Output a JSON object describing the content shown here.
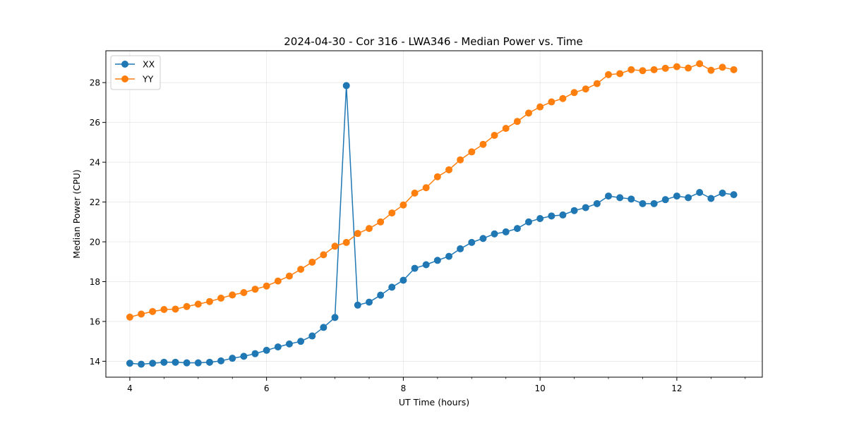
{
  "chart_data": {
    "type": "line",
    "title": "2024-04-30 - Cor 316 - LWA346 - Median Power vs. Time",
    "xlabel": "UT Time (hours)",
    "ylabel": "Median Power (CPU)",
    "xlim": [
      3.65,
      13.25
    ],
    "ylim": [
      13.2,
      29.6
    ],
    "xticks": [
      4,
      6,
      8,
      10,
      12
    ],
    "xtick_labels": [
      "4",
      "6",
      "8",
      "10",
      "12"
    ],
    "yticks": [
      14,
      16,
      18,
      20,
      22,
      24,
      26,
      28
    ],
    "ytick_labels": [
      "14",
      "16",
      "18",
      "20",
      "22",
      "24",
      "26",
      "28"
    ],
    "grid": true,
    "legend_position": "upper-left",
    "x": [
      4.0,
      4.167,
      4.333,
      4.5,
      4.667,
      4.833,
      5.0,
      5.167,
      5.333,
      5.5,
      5.667,
      5.833,
      6.0,
      6.167,
      6.333,
      6.5,
      6.667,
      6.833,
      7.0,
      7.167,
      7.333,
      7.5,
      7.667,
      7.833,
      8.0,
      8.167,
      8.333,
      8.5,
      8.667,
      8.833,
      9.0,
      9.167,
      9.333,
      9.5,
      9.667,
      9.833,
      10.0,
      10.167,
      10.333,
      10.5,
      10.667,
      10.833,
      11.0,
      11.167,
      11.333,
      11.5,
      11.667,
      11.833,
      12.0,
      12.167,
      12.333,
      12.5,
      12.667,
      12.833
    ],
    "series": [
      {
        "name": "XX",
        "color": "#1f77b4",
        "values": [
          13.9,
          13.85,
          13.9,
          13.95,
          13.95,
          13.92,
          13.92,
          13.95,
          14.02,
          14.15,
          14.25,
          14.38,
          14.55,
          14.72,
          14.87,
          15.0,
          15.27,
          15.7,
          16.2,
          27.85,
          16.82,
          16.97,
          17.32,
          17.72,
          18.07,
          18.67,
          18.85,
          19.07,
          19.27,
          19.65,
          19.97,
          20.17,
          20.4,
          20.5,
          20.67,
          21.0,
          21.17,
          21.3,
          21.35,
          21.57,
          21.72,
          21.92,
          22.3,
          22.22,
          22.15,
          21.92,
          21.92,
          22.12,
          22.3,
          22.22,
          22.48,
          22.18,
          22.45,
          22.37
        ]
      },
      {
        "name": "YY",
        "color": "#ff7f0e",
        "values": [
          16.22,
          16.37,
          16.5,
          16.6,
          16.62,
          16.75,
          16.87,
          17.0,
          17.17,
          17.33,
          17.45,
          17.62,
          17.78,
          18.03,
          18.28,
          18.62,
          18.98,
          19.35,
          19.78,
          19.97,
          20.42,
          20.67,
          21.0,
          21.45,
          21.85,
          22.45,
          22.72,
          23.27,
          23.62,
          24.12,
          24.52,
          24.9,
          25.35,
          25.7,
          26.05,
          26.47,
          26.78,
          27.03,
          27.2,
          27.5,
          27.68,
          27.95,
          28.4,
          28.45,
          28.65,
          28.6,
          28.65,
          28.72,
          28.8,
          28.73,
          28.95,
          28.62,
          28.77,
          28.65
        ]
      }
    ]
  }
}
